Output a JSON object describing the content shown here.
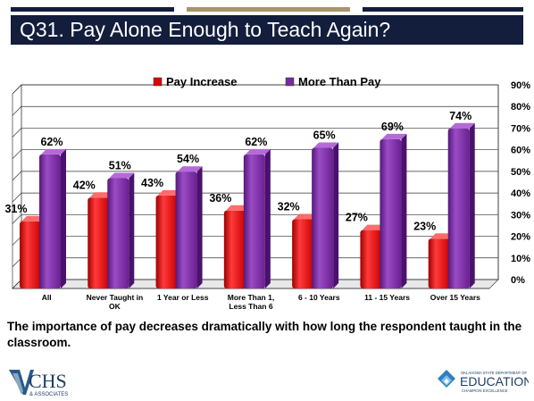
{
  "header": {
    "title": "Q31. Pay Alone Enough to Teach Again?",
    "band_color": "#131d3c",
    "accent_bar_colors": [
      "#131d3c",
      "#a9956a",
      "#131d3c"
    ]
  },
  "chart_data": {
    "type": "bar",
    "categories": [
      [
        "All"
      ],
      [
        "Never Taught in",
        "OK"
      ],
      [
        "1 Year or Less"
      ],
      [
        "More Than 1,",
        "Less Than 6"
      ],
      [
        "6 - 10 Years"
      ],
      [
        "11 - 15 Years"
      ],
      [
        "Over 15 Years"
      ]
    ],
    "series": [
      {
        "name": "Pay Increase",
        "values": [
          31,
          42,
          43,
          36,
          32,
          27,
          23
        ],
        "labels": [
          "31%",
          "42%",
          "43%",
          "36%",
          "32%",
          "27%",
          "23%"
        ],
        "color": "#e00000"
      },
      {
        "name": "More Than Pay",
        "values": [
          62,
          51,
          54,
          62,
          65,
          69,
          74
        ],
        "labels": [
          "62%",
          "51%",
          "54%",
          "62%",
          "65%",
          "69%",
          "74%"
        ],
        "color": "#7a2aa0"
      }
    ],
    "ylim": [
      0,
      90
    ],
    "yticks": [
      0,
      10,
      20,
      30,
      40,
      50,
      60,
      70,
      80,
      90
    ],
    "ytick_labels": [
      "0%",
      "10%",
      "20%",
      "30%",
      "40%",
      "50%",
      "60%",
      "70%",
      "80%",
      "90%"
    ],
    "y_axis_side": "right",
    "grid": true,
    "legend": "top-center"
  },
  "caption": "The importance of pay decreases dramatically with how long the respondent taught in the classroom.",
  "logos": {
    "left": {
      "text": "CHS",
      "subtext": "& ASSOCIATES"
    },
    "right": {
      "small": "OKLAHOMA STATE DEPARTMENT OF",
      "main": "EDUCATION",
      "tagline": "CHAMPION EXCELLENCE"
    }
  }
}
